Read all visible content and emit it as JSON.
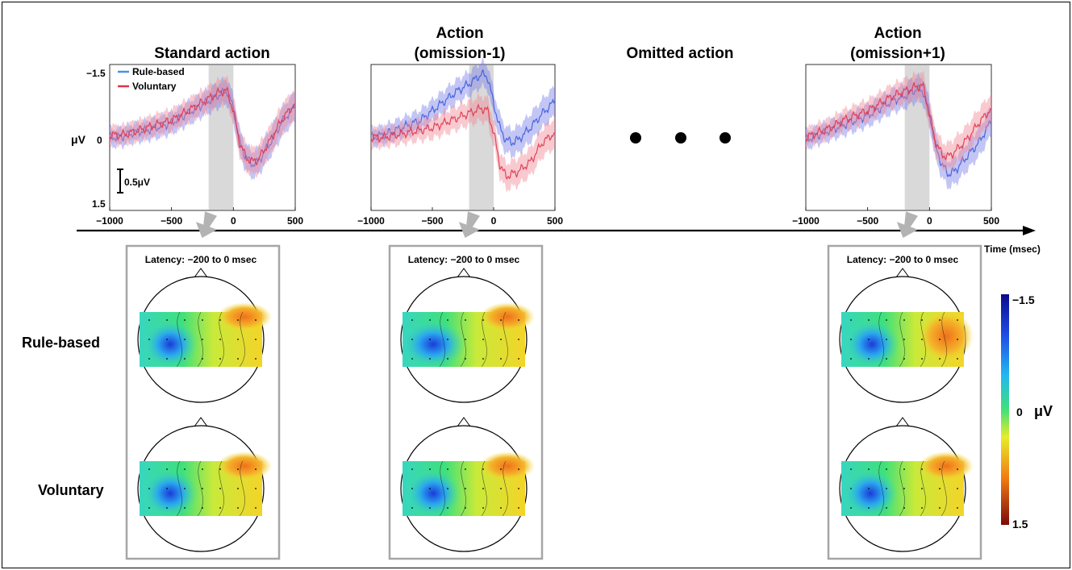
{
  "colors": {
    "rule_based": "#3b5bdb",
    "rule_based_fill": "#7b7ee8",
    "voluntary": "#e0334a",
    "voluntary_fill": "#f08a96",
    "highlight": "#d9d9d9",
    "box": "#a6a6a6"
  },
  "chart_data": [
    {
      "type": "line",
      "title": "Standard action",
      "xlabel": "Time (msec)",
      "ylabel": "μV",
      "xlim": [
        -1000,
        500
      ],
      "ylim": [
        1.5,
        -1.5
      ],
      "y_inverted": true,
      "x_ticks": [
        "−1000",
        "−500",
        "0",
        "500"
      ],
      "y_ticks": [
        "−1.5",
        "0",
        "1.5"
      ],
      "scale_bar": "0.5μV",
      "highlight_window": [
        -200,
        0
      ],
      "legend": [
        "Rule-based",
        "Voluntary"
      ],
      "series": [
        {
          "name": "Rule-based",
          "x": [
            -1000,
            -900,
            -800,
            -700,
            -600,
            -500,
            -400,
            -300,
            -200,
            -100,
            -50,
            0,
            50,
            100,
            150,
            200,
            300,
            400,
            500
          ],
          "y": [
            0.0,
            -0.02,
            -0.1,
            -0.15,
            -0.22,
            -0.3,
            -0.45,
            -0.6,
            -0.75,
            -0.9,
            -0.95,
            -0.6,
            0.1,
            0.4,
            0.55,
            0.5,
            0.1,
            -0.35,
            -0.65
          ]
        },
        {
          "name": "Voluntary",
          "x": [
            -1000,
            -900,
            -800,
            -700,
            -600,
            -500,
            -400,
            -300,
            -200,
            -100,
            -50,
            0,
            50,
            100,
            150,
            200,
            300,
            400,
            500
          ],
          "y": [
            -0.05,
            -0.05,
            -0.12,
            -0.2,
            -0.28,
            -0.35,
            -0.5,
            -0.65,
            -0.8,
            -0.95,
            -0.95,
            -0.55,
            0.1,
            0.4,
            0.5,
            0.45,
            0.05,
            -0.4,
            -0.7
          ]
        }
      ]
    },
    {
      "type": "line",
      "title": "Action\n(omission-1)",
      "xlim": [
        -1000,
        500
      ],
      "ylim": [
        1.5,
        -1.5
      ],
      "y_inverted": true,
      "x_ticks": [
        "−1000",
        "−500",
        "0",
        "500"
      ],
      "highlight_window": [
        -200,
        0
      ],
      "series": [
        {
          "name": "Rule-based",
          "x": [
            -1000,
            -900,
            -800,
            -700,
            -600,
            -500,
            -400,
            -300,
            -200,
            -100,
            -50,
            0,
            50,
            100,
            150,
            200,
            300,
            400,
            500
          ],
          "y": [
            0.0,
            -0.05,
            -0.15,
            -0.25,
            -0.35,
            -0.55,
            -0.75,
            -0.95,
            -1.1,
            -1.3,
            -1.25,
            -0.7,
            -0.2,
            0.05,
            0.1,
            0.05,
            -0.2,
            -0.5,
            -0.75
          ]
        },
        {
          "name": "Voluntary",
          "x": [
            -1000,
            -900,
            -800,
            -700,
            -600,
            -500,
            -400,
            -300,
            -200,
            -100,
            -50,
            0,
            50,
            100,
            150,
            200,
            300,
            400,
            500
          ],
          "y": [
            0.0,
            0.0,
            -0.05,
            -0.1,
            -0.15,
            -0.2,
            -0.3,
            -0.4,
            -0.5,
            -0.6,
            -0.55,
            -0.1,
            0.55,
            0.8,
            0.75,
            0.7,
            0.5,
            0.1,
            -0.1
          ]
        }
      ]
    },
    {
      "type": "line",
      "title": "Omitted action",
      "series": []
    },
    {
      "type": "line",
      "title": "Action\n(omission+1)",
      "xlim": [
        -1000,
        500
      ],
      "ylim": [
        1.5,
        -1.5
      ],
      "y_inverted": true,
      "x_ticks": [
        "−1000",
        "−500",
        "0",
        "500"
      ],
      "highlight_window": [
        -200,
        0
      ],
      "series": [
        {
          "name": "Rule-based",
          "x": [
            -1000,
            -900,
            -800,
            -700,
            -600,
            -500,
            -400,
            -300,
            -200,
            -100,
            -50,
            0,
            50,
            100,
            150,
            200,
            300,
            400,
            500
          ],
          "y": [
            0.05,
            -0.05,
            -0.15,
            -0.25,
            -0.35,
            -0.45,
            -0.6,
            -0.75,
            -0.85,
            -1.0,
            -0.95,
            -0.5,
            0.2,
            0.55,
            0.75,
            0.7,
            0.4,
            0.1,
            -0.35
          ]
        },
        {
          "name": "Voluntary",
          "x": [
            -1000,
            -900,
            -800,
            -700,
            -600,
            -500,
            -400,
            -300,
            -200,
            -100,
            -50,
            0,
            50,
            100,
            150,
            200,
            300,
            400,
            500
          ],
          "y": [
            0.0,
            -0.1,
            -0.2,
            -0.35,
            -0.45,
            -0.55,
            -0.7,
            -0.85,
            -0.95,
            -1.05,
            -1.05,
            -0.45,
            0.1,
            0.35,
            0.4,
            0.3,
            0.05,
            -0.3,
            -0.6
          ]
        }
      ]
    }
  ],
  "axis": {
    "time_label": "Time (msec)"
  },
  "topo": {
    "latency_label": "Latency: −200 to 0 msec",
    "rows": [
      "Rule-based",
      "Voluntary"
    ],
    "colorbar": {
      "min_label": "−1.5",
      "mid_label": "0",
      "max_label": "1.5",
      "unit": "μV"
    }
  }
}
